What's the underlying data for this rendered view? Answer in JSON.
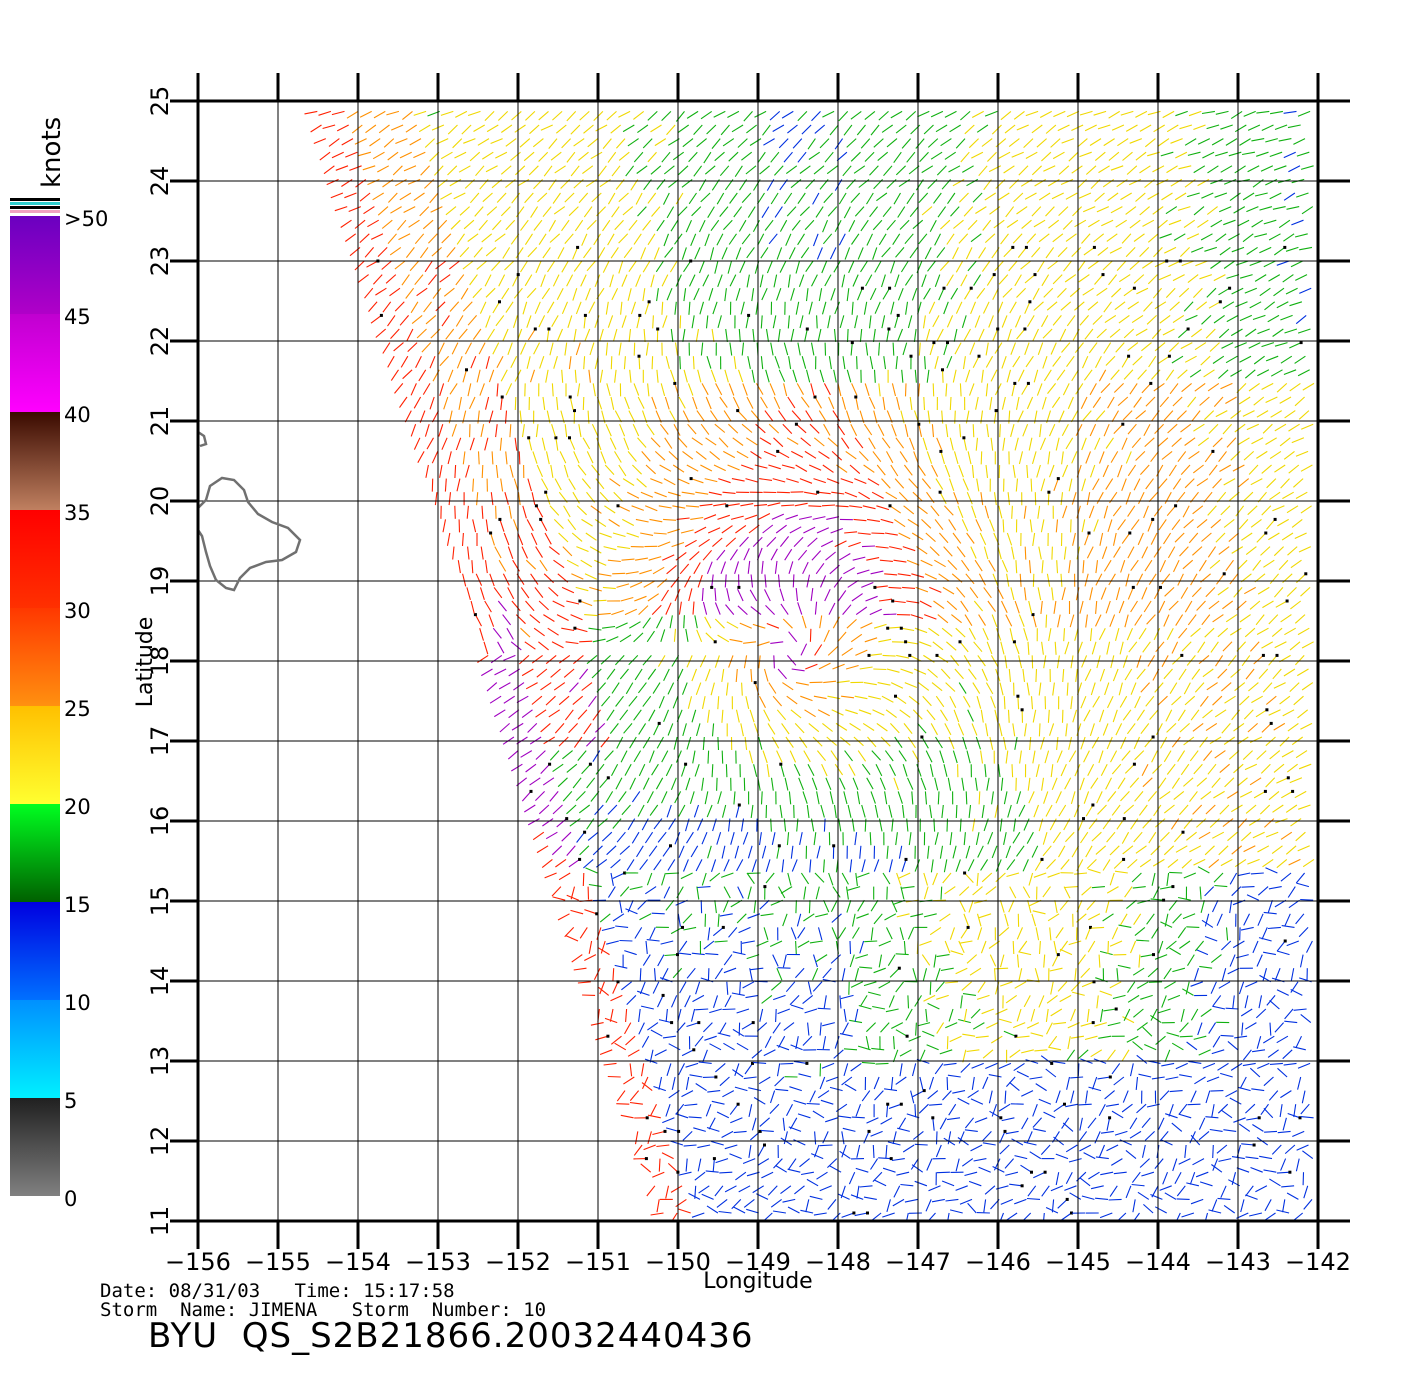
{
  "map": {
    "xlabel": "Longitude",
    "ylabel": "Latitude",
    "lon_range": [
      -156,
      -142
    ],
    "lat_range": [
      11,
      25
    ],
    "lon_ticks": [
      "−156",
      "−155",
      "−154",
      "−153",
      "−152",
      "−151",
      "−150",
      "−149",
      "−148",
      "−147",
      "−146",
      "−145",
      "−144",
      "−143",
      "−142"
    ],
    "lat_ticks": [
      "11",
      "12",
      "13",
      "14",
      "15",
      "16",
      "17",
      "18",
      "19",
      "20",
      "21",
      "22",
      "23",
      "24",
      "25"
    ],
    "grid": true,
    "feature": "wind-vector-field",
    "storm_center": {
      "lon": -148.6,
      "lat": 18.1
    },
    "land": "Hawaii-Big-Island-coastline"
  },
  "colorbar": {
    "unit_label": "knots",
    "ticks": [
      "0",
      "5",
      "10",
      "15",
      "20",
      "25",
      "30",
      "35",
      "40",
      "45",
      ">50"
    ],
    "bands": [
      {
        "from": 0,
        "to": 5,
        "colors": [
          "#808080",
          "#202020"
        ]
      },
      {
        "from": 5,
        "to": 10,
        "colors": [
          "#00f0ff",
          "#0090ff"
        ]
      },
      {
        "from": 10,
        "to": 15,
        "colors": [
          "#0070ff",
          "#0000e0"
        ]
      },
      {
        "from": 15,
        "to": 20,
        "colors": [
          "#006000",
          "#00ff20"
        ]
      },
      {
        "from": 20,
        "to": 25,
        "colors": [
          "#ffff30",
          "#ffc000"
        ]
      },
      {
        "from": 25,
        "to": 30,
        "colors": [
          "#ff9010",
          "#ff3800"
        ]
      },
      {
        "from": 30,
        "to": 35,
        "colors": [
          "#ff3000",
          "#ff0000"
        ]
      },
      {
        "from": 35,
        "to": 40,
        "colors": [
          "#c08060",
          "#3a0a00"
        ]
      },
      {
        "from": 40,
        "to": 45,
        "colors": [
          "#ff00ff",
          "#c000d0"
        ]
      },
      {
        "from": 45,
        "to": 50,
        "colors": [
          "#b000c8",
          "#6a00c0"
        ]
      }
    ]
  },
  "footer": {
    "line1": "Date: 08/31/03   Time: 15:17:58",
    "line2": "Storm  Name: JIMENA   Storm  Number: 10",
    "product": "BYU  QS_S2B21866.20032440436"
  }
}
